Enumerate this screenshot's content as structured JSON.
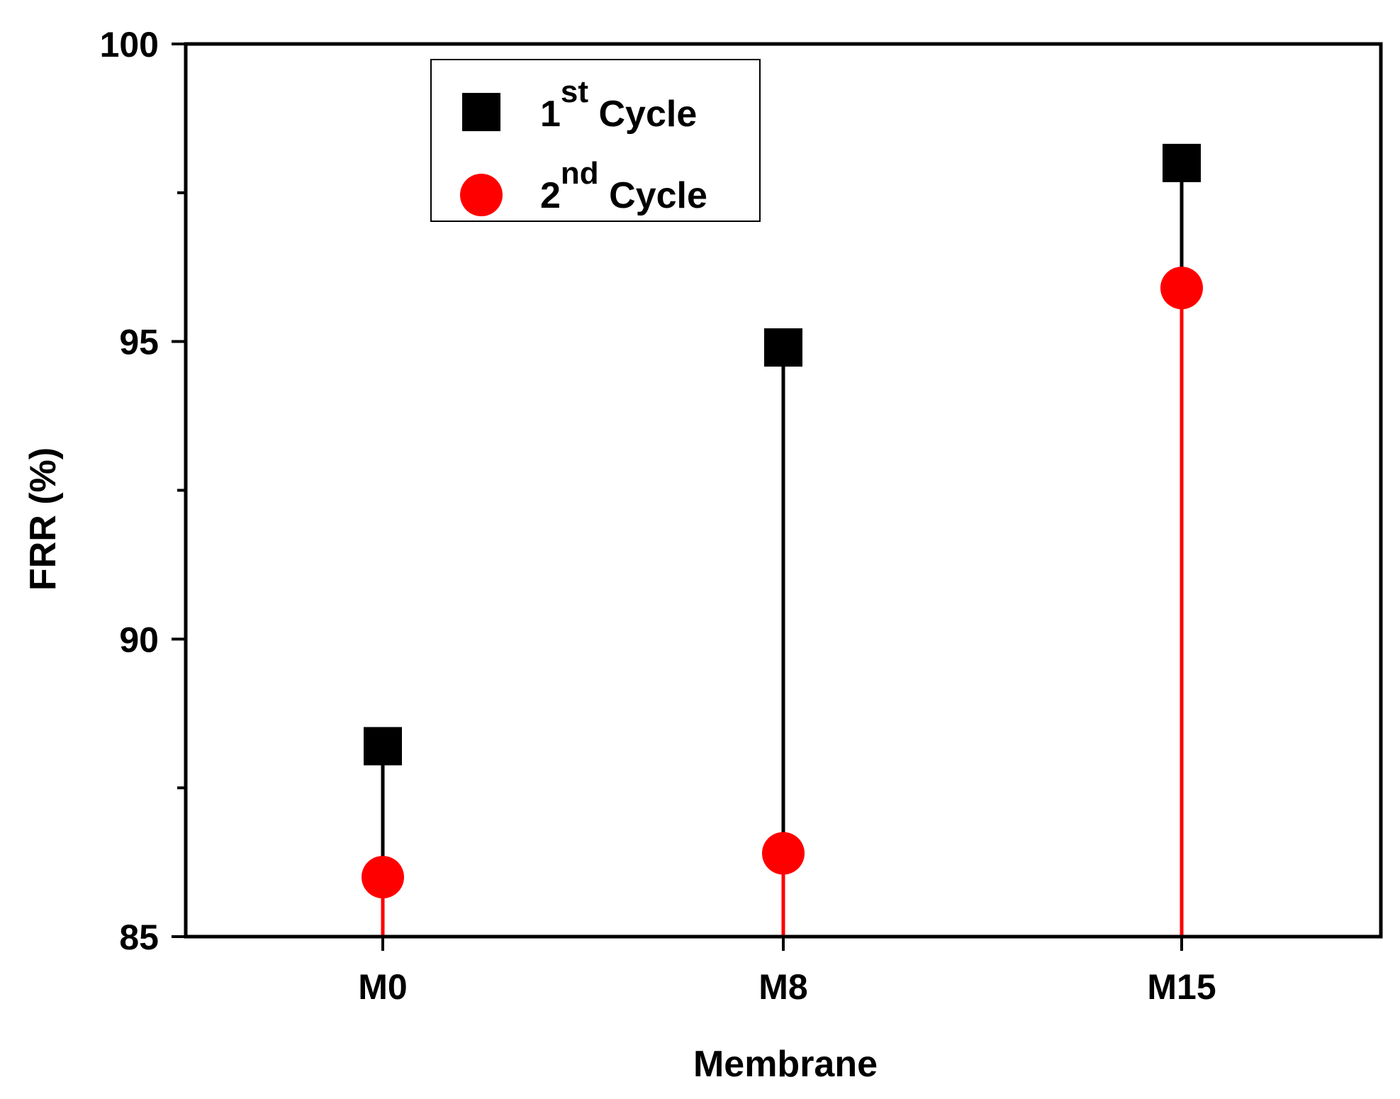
{
  "chart_data": {
    "type": "scatter",
    "title": "",
    "xlabel": "Membrane",
    "ylabel": "FRR (%)",
    "categories": [
      "M0",
      "M8",
      "M15"
    ],
    "ylim": [
      85,
      100
    ],
    "yticks_major": [
      85,
      90,
      95,
      100
    ],
    "yticks_minor": [
      87.5,
      92.5,
      97.5
    ],
    "drop_lines": true,
    "series": [
      {
        "name": "1st Cycle",
        "label_base": "1",
        "label_sup": "st",
        "label_rest": " Cycle",
        "marker": "square",
        "color": "#000000",
        "values": [
          88.2,
          94.9,
          98.0
        ]
      },
      {
        "name": "2nd Cycle",
        "label_base": "2",
        "label_sup": "nd",
        "label_rest": " Cycle",
        "marker": "circle",
        "color": "#ff0000",
        "values": [
          86.0,
          86.4,
          95.9
        ]
      }
    ],
    "legend_position": "top-left"
  }
}
